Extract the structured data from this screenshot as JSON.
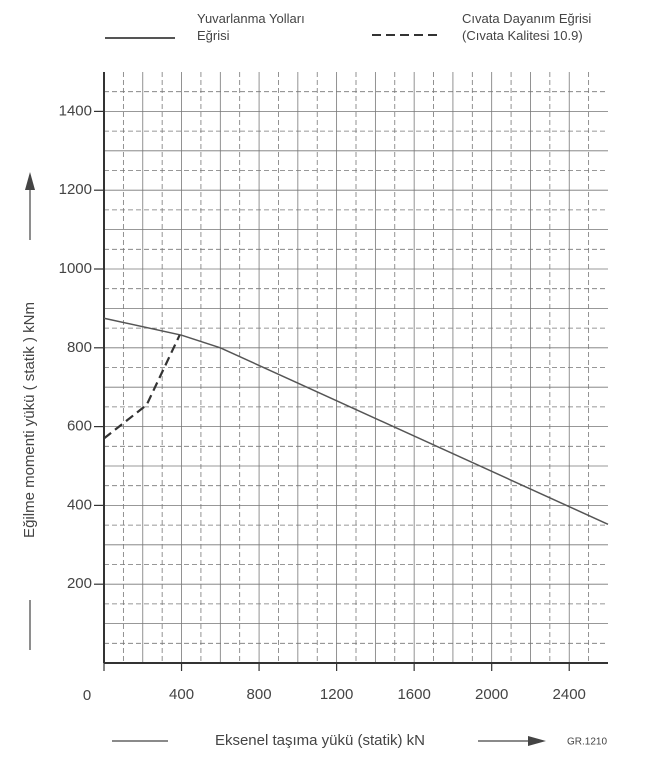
{
  "chart_data": {
    "type": "line",
    "x_label": "Eksenel taşıma yükü  (statik) kN",
    "y_label": "Eğilme momenti yükü  ( statik )  kNm",
    "figure_code": "GR.1210",
    "xlim": [
      0,
      2600
    ],
    "ylim": [
      0,
      1500
    ],
    "xticks": [
      0,
      400,
      800,
      1200,
      1600,
      2000,
      2400
    ],
    "yticks": [
      200,
      400,
      600,
      800,
      1000,
      1200,
      1400
    ],
    "x_grid": [
      100,
      200,
      300,
      400,
      500,
      600,
      700,
      800,
      900,
      1000,
      1100,
      1200,
      1300,
      1400,
      1500,
      1600,
      1700,
      1800,
      1900,
      2000,
      2100,
      2200,
      2300,
      2400,
      2500
    ],
    "y_grid": [
      50,
      100,
      150,
      200,
      250,
      300,
      350,
      400,
      450,
      500,
      550,
      600,
      650,
      700,
      750,
      800,
      850,
      900,
      950,
      1000,
      1050,
      1100,
      1150,
      1200,
      1250,
      1300,
      1350,
      1400,
      1450
    ],
    "grid": true,
    "series": [
      {
        "name": "Yuvarlanma Yolları Eğrisi",
        "color": "#555555",
        "style": "solid",
        "x": [
          0,
          400,
          600,
          2600
        ],
        "values": [
          875,
          832,
          800,
          352
        ]
      },
      {
        "name": "Cıvata Dayanım Eğrisi (Cıvata Kalitesi 10.9)",
        "color": "#333333",
        "style": "dashed",
        "x": [
          0,
          220,
          390
        ],
        "values": [
          570,
          655,
          832
        ]
      }
    ]
  }
}
